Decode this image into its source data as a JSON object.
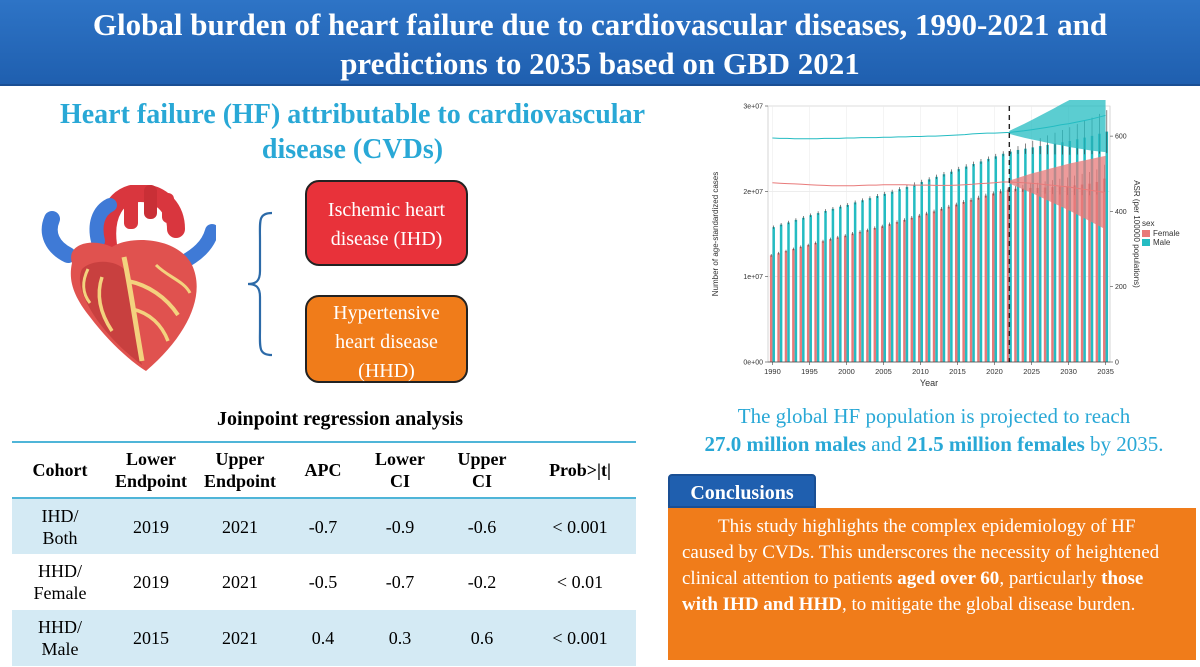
{
  "header": {
    "line1": "Global burden of heart failure due to cardiovascular diseases, 1990-2021 and",
    "line2": "predictions to 2035 based on GBD 2021"
  },
  "left": {
    "title_line1": "Heart failure (HF) attributable to cardiovascular",
    "title_line2": "disease (CVDs)",
    "box_ihd_line1": "Ischemic heart",
    "box_ihd_line2": "disease (IHD)",
    "box_hhd_line1": "Hypertensive",
    "box_hhd_line2": "heart disease",
    "box_hhd_line3": "(HHD)"
  },
  "joinpoint": {
    "title": "Joinpoint regression analysis",
    "headers": [
      [
        "Cohort"
      ],
      [
        "Lower",
        "Endpoint"
      ],
      [
        "Upper",
        "Endpoint"
      ],
      [
        "APC"
      ],
      [
        "Lower",
        "CI"
      ],
      [
        "Upper",
        "CI"
      ],
      [
        "Prob>|t|"
      ]
    ],
    "rows": [
      {
        "cohort1": "IHD/",
        "cohort2": "Both",
        "lower_endpoint": "2019",
        "upper_endpoint": "2021",
        "apc": "-0.7",
        "lower_ci": "-0.9",
        "upper_ci": "-0.6",
        "prob": "< 0.001"
      },
      {
        "cohort1": "HHD/",
        "cohort2": "Female",
        "lower_endpoint": "2019",
        "upper_endpoint": "2021",
        "apc": "-0.5",
        "lower_ci": "-0.7",
        "upper_ci": "-0.2",
        "prob": "< 0.01"
      },
      {
        "cohort1": "HHD/",
        "cohort2": "Male",
        "lower_endpoint": "2015",
        "upper_endpoint": "2021",
        "apc": "0.4",
        "lower_ci": "0.3",
        "upper_ci": "0.6",
        "prob": "< 0.001"
      }
    ]
  },
  "chart_data": {
    "type": "bar",
    "xlabel": "Year",
    "ylabel": "Number of age-standardized cases",
    "y2label": "ASR (per 100000 populations)",
    "x_ticks": [
      "1990",
      "1995",
      "2000",
      "2005",
      "2010",
      "2015",
      "2020",
      "2025",
      "2030",
      "2035"
    ],
    "y_ticks": [
      "0e+00",
      "1e+07",
      "2e+07",
      "3e+07"
    ],
    "y2_ticks": [
      "0",
      "200",
      "400",
      "600"
    ],
    "ylim": [
      0,
      30000000
    ],
    "y2lim": [
      0,
      680
    ],
    "projection_start_year": 2022,
    "legend_title": "sex",
    "legend_position": "right",
    "colors": {
      "Female": "#e87a7a",
      "Male": "#24bcc2"
    },
    "years": [
      1990,
      1991,
      1992,
      1993,
      1994,
      1995,
      1996,
      1997,
      1998,
      1999,
      2000,
      2001,
      2002,
      2003,
      2004,
      2005,
      2006,
      2007,
      2008,
      2009,
      2010,
      2011,
      2012,
      2013,
      2014,
      2015,
      2016,
      2017,
      2018,
      2019,
      2020,
      2021,
      2022,
      2023,
      2024,
      2025,
      2026,
      2027,
      2028,
      2029,
      2030,
      2031,
      2032,
      2033,
      2034,
      2035
    ],
    "series": [
      {
        "name": "Female",
        "cases": [
          12500000,
          12750000,
          13000000,
          13250000,
          13500000,
          13700000,
          13950000,
          14150000,
          14400000,
          14600000,
          14800000,
          15050000,
          15250000,
          15450000,
          15700000,
          15900000,
          16150000,
          16400000,
          16650000,
          16900000,
          17150000,
          17400000,
          17650000,
          17950000,
          18200000,
          18450000,
          18750000,
          19000000,
          19250000,
          19500000,
          19750000,
          20000000,
          20200000,
          20300000,
          20350000,
          20400000,
          20400000,
          20450000,
          20500000,
          20550000,
          20600000,
          20700000,
          20800000,
          20900000,
          21100000,
          21500000
        ],
        "asr": [
          476,
          475,
          474,
          473,
          472,
          471,
          470,
          469,
          468,
          468,
          468,
          468,
          469,
          470,
          470,
          471,
          471,
          471,
          471,
          470,
          470,
          470,
          469,
          469,
          469,
          470,
          471,
          472,
          474,
          475,
          476,
          478,
          478,
          477,
          476,
          475,
          473,
          471,
          469,
          467,
          465,
          462,
          459,
          456,
          453,
          450
        ]
      },
      {
        "name": "Male",
        "cases": [
          15800000,
          16100000,
          16350000,
          16650000,
          16900000,
          17200000,
          17450000,
          17700000,
          17950000,
          18200000,
          18400000,
          18700000,
          18950000,
          19200000,
          19450000,
          19700000,
          19950000,
          20250000,
          20500000,
          20800000,
          21100000,
          21400000,
          21700000,
          22000000,
          22300000,
          22600000,
          22900000,
          23200000,
          23500000,
          23800000,
          24100000,
          24400000,
          24650000,
          24850000,
          25000000,
          25150000,
          25300000,
          25450000,
          25600000,
          25750000,
          25900000,
          26100000,
          26300000,
          26500000,
          26750000,
          27000000
        ],
        "asr": [
          595,
          594,
          594,
          593,
          593,
          593,
          593,
          594,
          594,
          594,
          595,
          595,
          596,
          596,
          596,
          597,
          597,
          598,
          598,
          599,
          599,
          600,
          600,
          601,
          602,
          603,
          604,
          606,
          607,
          608,
          608,
          609,
          610,
          612,
          614,
          617,
          620,
          623,
          626,
          630,
          633,
          637,
          641,
          645,
          650,
          655
        ]
      }
    ]
  },
  "projection_text": {
    "line1": "The global HF population is projected to reach",
    "male_value": "27.0 million males",
    "and_word": "and",
    "female_value": "21.5 million females",
    "by_year": "by 2035."
  },
  "conclusions": {
    "label": "Conclusions",
    "text1": "This study highlights the complex epidemiology of HF caused by CVDs. This underscores the necessity of heightened clinical attention to patients ",
    "bold1": "aged over 60",
    "text2": ", particularly ",
    "bold2": "those with IHD and HHD",
    "text3": ", to mitigate the global disease burden."
  }
}
